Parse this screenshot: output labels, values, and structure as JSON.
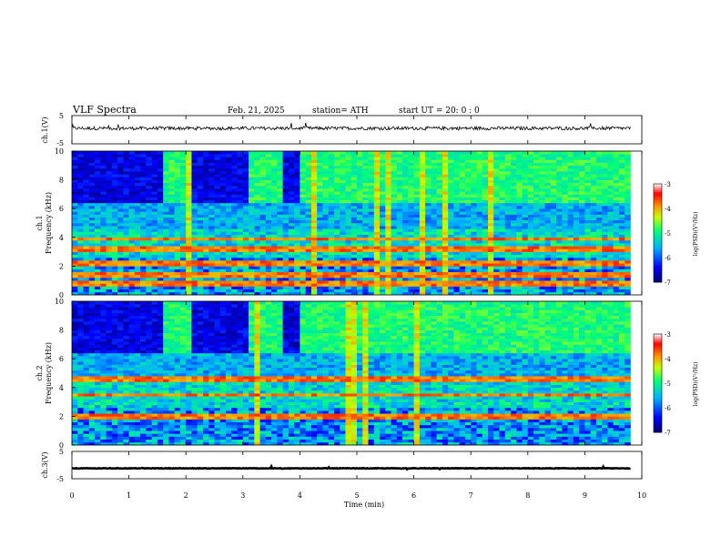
{
  "header": {
    "title": "VLF  Spectra",
    "date": "Feb. 21, 2025",
    "station": "station= ATH",
    "start_ut": "start  UT  =    20: 0  : 0"
  },
  "chart_data": [
    {
      "type": "line",
      "id": "ch1-waveform",
      "ylabel": "ch.1(V)",
      "ylim": [
        -5,
        5
      ],
      "yticks": [
        "5",
        "-5"
      ],
      "baseline_v": 0.5,
      "noise_amplitude_v": 0.6,
      "xlim": [
        0,
        10
      ]
    },
    {
      "type": "heatmap",
      "id": "ch1-spectrogram",
      "ylabel_top": "ch.1",
      "ylabel": "Frequency  (kHz)",
      "ylim": [
        0,
        10
      ],
      "yticks": [
        "0",
        "2",
        "4",
        "6",
        "8",
        "10"
      ],
      "xlim": [
        0,
        9.8
      ],
      "z_label": "log(PSD)(V²/Hz)",
      "zlim": [
        -7,
        -3
      ],
      "zticks": [
        "-3",
        "-4",
        "-5",
        "-6",
        "-7"
      ],
      "quiet_intervals_min": [
        [
          0,
          1.6
        ],
        [
          2.15,
          3.1
        ],
        [
          3.75,
          3.95
        ]
      ],
      "strong_lines_khz": [
        0.8,
        1.4,
        2.2,
        3.2,
        3.9
      ],
      "colorscale": [
        "#000090",
        "#0000ff",
        "#00c0ff",
        "#00ff80",
        "#e0ff00",
        "#ff8000",
        "#ff0000",
        "#ffffff"
      ]
    },
    {
      "type": "heatmap",
      "id": "ch2-spectrogram",
      "ylabel_top": "ch.2",
      "ylabel": "Frequency  (kHz)",
      "ylim": [
        0,
        10
      ],
      "yticks": [
        "0",
        "2",
        "4",
        "6",
        "8",
        "10"
      ],
      "xlim": [
        0,
        9.8
      ],
      "z_label": "log(PSD)(V²/Hz)",
      "zlim": [
        -7,
        -3
      ],
      "zticks": [
        "-3",
        "-4",
        "-5",
        "-6",
        "-7"
      ],
      "quiet_intervals_min": [
        [
          0,
          1.6
        ],
        [
          2.15,
          3.1
        ],
        [
          3.75,
          3.95
        ]
      ],
      "strong_lines_khz": [
        2.0,
        3.5,
        4.6
      ],
      "colorscale": [
        "#000090",
        "#0000ff",
        "#00c0ff",
        "#00ff80",
        "#e0ff00",
        "#ff8000",
        "#ff0000",
        "#ffffff"
      ]
    },
    {
      "type": "line",
      "id": "ch3-waveform",
      "ylabel": "ch.3(V)",
      "ylim": [
        -5,
        5
      ],
      "yticks": [
        "5",
        "-5"
      ],
      "baseline_v": -1.2,
      "noise_amplitude_v": 0.25,
      "xlim": [
        0,
        10
      ]
    }
  ],
  "xaxis": {
    "label": "Time  (min)",
    "ticks": [
      "0",
      "1",
      "2",
      "3",
      "4",
      "5",
      "6",
      "7",
      "8",
      "9",
      "10"
    ],
    "xlim": [
      0,
      10
    ]
  }
}
